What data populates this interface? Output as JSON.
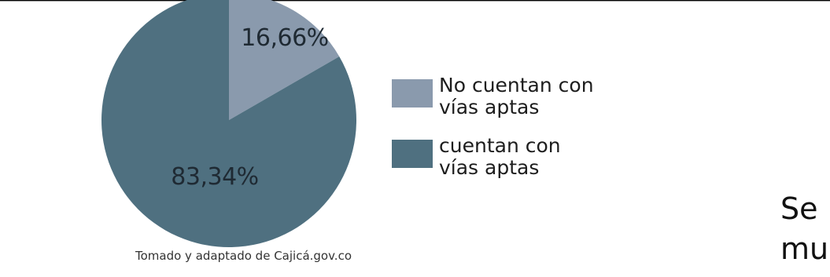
{
  "chart_data": {
    "type": "pie",
    "title": "",
    "slices": [
      {
        "label": "No cuentan con vías aptas",
        "label_lines": [
          "No cuentan con",
          "vías aptas"
        ],
        "value": 16.66,
        "display": "16,66%",
        "color": "#8a9aad"
      },
      {
        "label": "cuentan con vías aptas",
        "label_lines": [
          "cuentan con",
          "vías aptas"
        ],
        "value": 83.34,
        "display": "83,34%",
        "color": "#4f7080"
      }
    ],
    "legend_position": "right",
    "source": "Tomado y adaptado de Cajicá.gov.co"
  },
  "page_fragment": {
    "line1": "Se",
    "line2": "mu"
  }
}
